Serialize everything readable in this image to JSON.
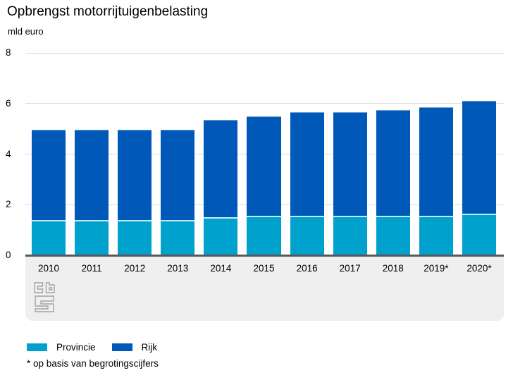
{
  "header": {
    "title": "Opbrengst motorrijtuigenbelasting",
    "unit_label": "mld euro"
  },
  "chart_data": {
    "type": "bar",
    "stacked": true,
    "title": "Opbrengst motorrijtuigenbelasting",
    "ylabel": "mld euro",
    "xlabel": "",
    "categories": [
      "2010",
      "2011",
      "2012",
      "2013",
      "2014",
      "2015",
      "2016",
      "2017",
      "2018",
      "2019*",
      "2020*"
    ],
    "series": [
      {
        "name": "Provincie",
        "color": "#00a1cd",
        "values": [
          1.4,
          1.4,
          1.4,
          1.4,
          1.5,
          1.55,
          1.55,
          1.55,
          1.55,
          1.55,
          1.65
        ]
      },
      {
        "name": "Rijk",
        "color": "#0058b8",
        "values": [
          3.55,
          3.55,
          3.55,
          3.55,
          3.85,
          3.95,
          4.1,
          4.1,
          4.2,
          4.3,
          4.45
        ]
      }
    ],
    "totals": [
      4.95,
      4.95,
      4.95,
      4.95,
      5.35,
      5.5,
      5.65,
      5.65,
      5.75,
      5.85,
      6.1
    ],
    "ylim": [
      0,
      8
    ],
    "yticks": [
      0,
      2,
      4,
      6,
      8
    ],
    "grid": true,
    "legend_position": "bottom"
  },
  "legend": {
    "items": [
      {
        "label": "Provincie",
        "color": "#00a1cd"
      },
      {
        "label": "Rijk",
        "color": "#0058b8"
      }
    ]
  },
  "footnote": "* op basis van begrotingscijfers",
  "logo_name": "cbs-logo",
  "colors": {
    "axis_line": "#58585b",
    "gridline": "#dadada",
    "band_background": "#efefef",
    "logo_stroke": "#a3a3a3",
    "background": "#ffffff"
  }
}
